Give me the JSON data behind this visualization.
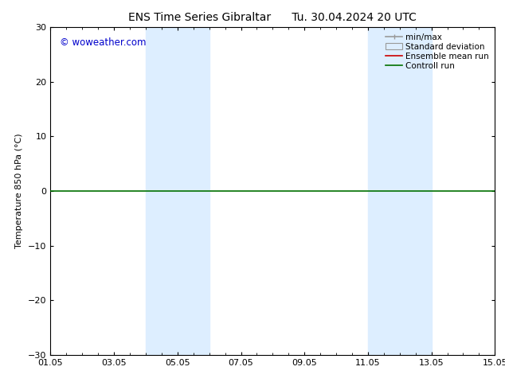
{
  "title": "ENS Time Series Gibraltar      Tu. 30.04.2024 20 UTC",
  "ylabel": "Temperature 850 hPa (°C)",
  "ylim": [
    -30,
    30
  ],
  "yticks": [
    -30,
    -20,
    -10,
    0,
    10,
    20,
    30
  ],
  "xtick_labels": [
    "01.05",
    "03.05",
    "05.05",
    "07.05",
    "09.05",
    "11.05",
    "13.05",
    "15.05"
  ],
  "xtick_positions": [
    0,
    2,
    4,
    6,
    8,
    10,
    12,
    14
  ],
  "x_total_days": 14,
  "shaded_bands": [
    {
      "x_start": 3.0,
      "x_end": 5.0
    },
    {
      "x_start": 10.0,
      "x_end": 12.0
    }
  ],
  "control_run_y": 0.0,
  "control_run_color": "#007000",
  "ensemble_mean_color": "#cc0000",
  "minmax_color": "#999999",
  "stddev_color": "#ddeeff",
  "background_color": "#ffffff",
  "watermark_text": "© woweather.com",
  "watermark_color": "#0000cc",
  "title_fontsize": 10,
  "legend_fontsize": 7.5,
  "label_fontsize": 8,
  "tick_fontsize": 8
}
